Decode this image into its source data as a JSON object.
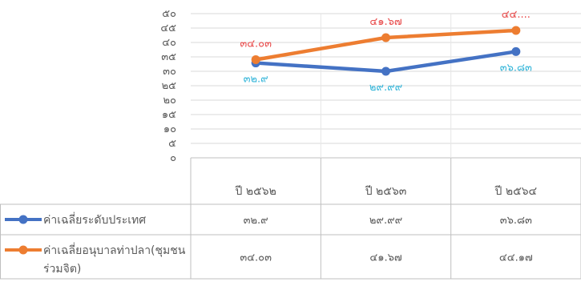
{
  "chart_data": {
    "type": "line",
    "title": "",
    "xlabel": "",
    "ylabel": "",
    "ylim": [
      0,
      50
    ],
    "y_ticks": [
      "๐",
      "๕",
      "๑๐",
      "๑๕",
      "๒๐",
      "๒๕",
      "๓๐",
      "๓๕",
      "๔๐",
      "๔๕",
      "๕๐"
    ],
    "grid": true,
    "legend": "data-table-left",
    "categories": [
      "ปี ๒๕๖๒",
      "ปี ๒๕๖๓",
      "ปี ๒๕๖๔"
    ],
    "series": [
      {
        "name": "ค่าเฉลี่ยระดับประเทศ",
        "name_lines": [
          "ค่าเฉลี่ยระดับประเทศ"
        ],
        "color": "#4472C4",
        "label_color": "#33B5D9",
        "values": [
          32.9,
          29.99,
          36.83
        ],
        "labels": [
          "๓๒.๙",
          "๒๙.๙๙",
          "๓๖.๘๓"
        ],
        "table_values": [
          "๓๒.๙",
          "๒๙.๙๙",
          "๓๖.๘๓"
        ]
      },
      {
        "name": "ค่าเฉลี่ยอนุบาลท่าปลา(ชุมชนร่วมจิต)",
        "name_lines": [
          "ค่าเฉลี่ยอนุบาลท่าปลา(ชุมชน",
          "ร่วมจิต)"
        ],
        "color": "#ED7D31",
        "label_color": "#E84A4A",
        "values": [
          34.03,
          41.67,
          44.17
        ],
        "labels": [
          "๓๔.๐๓",
          "๔๑.๖๗",
          "๔๔...."
        ],
        "table_values": [
          "๓๔.๐๓",
          "๔๑.๖๗",
          "๔๔.๑๗"
        ]
      }
    ]
  }
}
